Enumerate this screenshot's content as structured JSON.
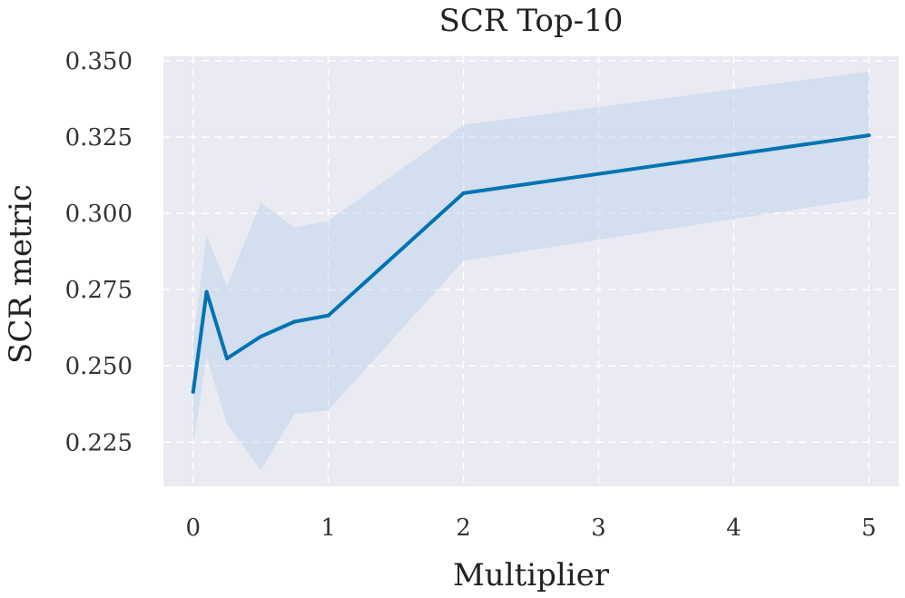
{
  "chart_data": {
    "type": "line",
    "title": "SCR Top-10",
    "xlabel": "Multiplier",
    "ylabel": "SCR metric",
    "xlim": [
      -0.22,
      5.22
    ],
    "ylim": [
      0.2105,
      0.3515
    ],
    "xticks": [
      0,
      1,
      2,
      3,
      4,
      5
    ],
    "xtick_labels": [
      "0",
      "1",
      "2",
      "3",
      "4",
      "5"
    ],
    "yticks": [
      0.225,
      0.25,
      0.275,
      0.3,
      0.325,
      0.35
    ],
    "ytick_labels": [
      "0.225",
      "0.250",
      "0.275",
      "0.300",
      "0.325",
      "0.350"
    ],
    "grid": true,
    "colors": {
      "line": "#0173b2",
      "band": "#a9c8e8",
      "plot_background": "#eaeaf2",
      "grid": "#ffffff"
    },
    "series": [
      {
        "x": [
          0,
          0.1,
          0.25,
          0.5,
          0.75,
          1,
          2,
          5
        ],
        "y": [
          0.2415,
          0.2743,
          0.2524,
          0.2596,
          0.2645,
          0.2665,
          0.3066,
          0.3256
        ],
        "lower": [
          0.224,
          0.253,
          0.231,
          0.2158,
          0.2342,
          0.2355,
          0.2845,
          0.305
        ],
        "upper": [
          0.258,
          0.293,
          0.276,
          0.3035,
          0.2953,
          0.2975,
          0.329,
          0.3465
        ]
      }
    ]
  }
}
